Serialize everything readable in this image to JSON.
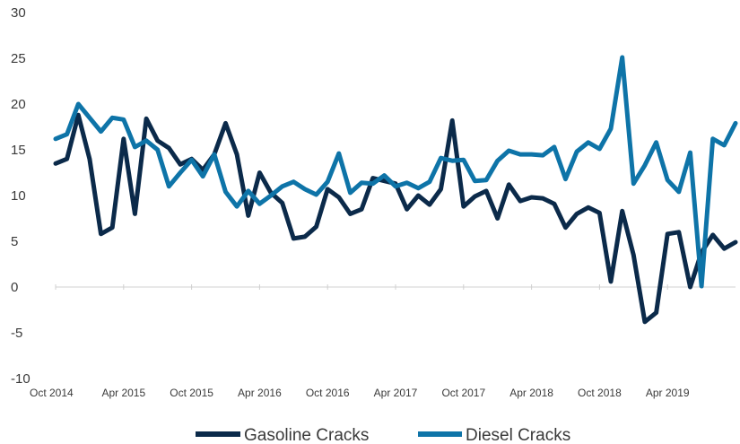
{
  "chart_data": {
    "type": "line",
    "title": "",
    "xlabel": "",
    "ylabel": "",
    "ylim": [
      -10,
      30
    ],
    "y_ticks": [
      -10,
      -5,
      0,
      5,
      10,
      15,
      20,
      25,
      30
    ],
    "x_tick_labels": [
      "Oct 2014",
      "Apr 2015",
      "Oct 2015",
      "Apr 2016",
      "Oct 2016",
      "Apr 2017",
      "Oct 2017",
      "Apr 2018",
      "Oct 2018",
      "Apr 2019"
    ],
    "x_tick_every_months": 6,
    "x_start": "2014-10",
    "x_end": "2019-12",
    "grid": false,
    "legend": "bottom",
    "series": [
      {
        "name": "Gasoline Cracks",
        "color": "#0b2a4a",
        "values": [
          13.5,
          14.0,
          18.8,
          14.0,
          5.8,
          6.5,
          16.2,
          8.0,
          18.4,
          16.0,
          15.2,
          13.4,
          14.0,
          12.8,
          14.5,
          17.9,
          14.5,
          7.8,
          12.5,
          10.3,
          9.2,
          5.3,
          5.5,
          6.6,
          10.7,
          9.8,
          8.0,
          8.5,
          11.9,
          11.6,
          11.3,
          8.5,
          10.0,
          9.0,
          10.7,
          18.2,
          8.8,
          9.9,
          10.5,
          7.5,
          11.2,
          9.4,
          9.8,
          9.7,
          9.1,
          6.5,
          8.0,
          8.7,
          8.1,
          0.6,
          8.3,
          3.5,
          -3.8,
          -2.8,
          5.8,
          6.0,
          0.0,
          3.8,
          5.7,
          4.2,
          4.9
        ]
      },
      {
        "name": "Diesel Cracks",
        "color": "#0e74a8",
        "values": [
          16.2,
          16.7,
          20.0,
          18.5,
          17.0,
          18.5,
          18.3,
          15.3,
          16.0,
          15.0,
          11.0,
          12.5,
          13.9,
          12.1,
          14.5,
          10.4,
          8.8,
          10.5,
          9.1,
          10.0,
          11.0,
          11.5,
          10.7,
          10.1,
          11.5,
          14.6,
          10.3,
          11.4,
          11.3,
          12.2,
          11.0,
          11.4,
          10.8,
          11.5,
          14.1,
          13.8,
          13.9,
          11.6,
          11.7,
          13.8,
          14.9,
          14.5,
          14.5,
          14.4,
          15.3,
          11.8,
          14.8,
          15.8,
          15.1,
          17.3,
          25.1,
          11.3,
          13.3,
          15.8,
          11.7,
          10.4,
          14.7,
          0.1,
          16.2,
          15.5,
          17.9
        ]
      }
    ]
  }
}
